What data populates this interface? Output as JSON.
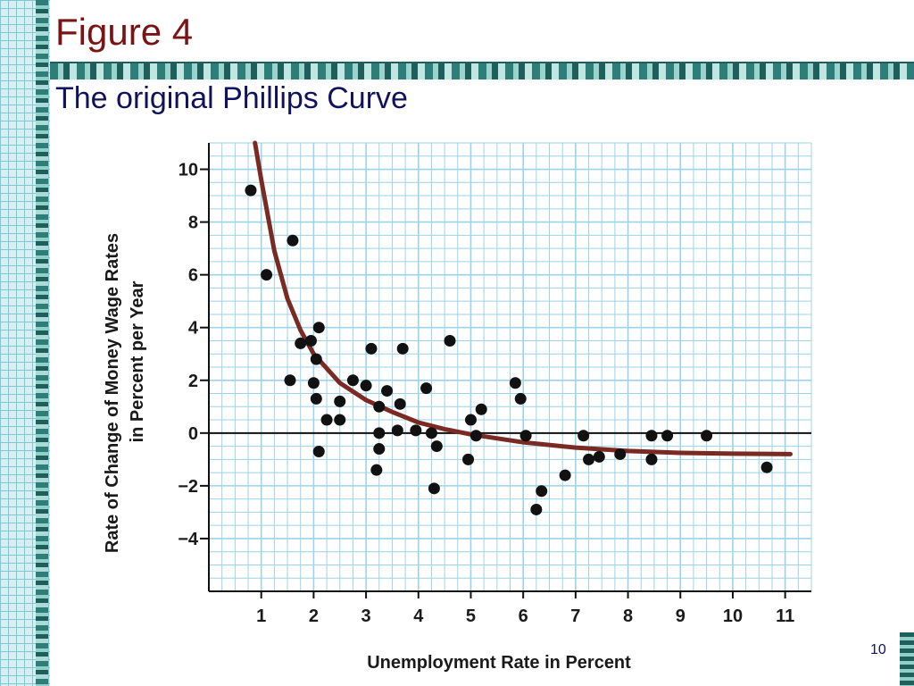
{
  "slide": {
    "title": "Figure 4",
    "subtitle": "The original Phillips Curve",
    "page_number": "10"
  },
  "colors": {
    "title": "#7a1414",
    "subtitle": "#10125e",
    "grid": "#9cd3ea",
    "curve": "#7a2a22",
    "points": "#111111"
  },
  "chart_data": {
    "type": "scatter",
    "title": "",
    "xlabel": "Unemployment Rate in Percent",
    "ylabel_line1": "Rate of Change of Money Wage Rates",
    "ylabel_line2": "in Percent per Year",
    "xlim": [
      0,
      11.5
    ],
    "ylim": [
      -6,
      11
    ],
    "grid": true,
    "x_ticks": [
      1,
      2,
      3,
      4,
      5,
      6,
      7,
      8,
      9,
      10,
      11
    ],
    "y_ticks": [
      10,
      8,
      6,
      4,
      2,
      0,
      -2,
      -4
    ],
    "y_tick_labels": [
      "10",
      "8",
      "6",
      "4",
      "2",
      "0",
      "−2",
      "−4"
    ],
    "points": [
      {
        "x": 0.8,
        "y": 9.2
      },
      {
        "x": 1.1,
        "y": 6.0
      },
      {
        "x": 1.6,
        "y": 7.3
      },
      {
        "x": 1.55,
        "y": 2.0
      },
      {
        "x": 1.75,
        "y": 3.4
      },
      {
        "x": 1.95,
        "y": 3.5
      },
      {
        "x": 2.1,
        "y": 4.0
      },
      {
        "x": 2.05,
        "y": 2.8
      },
      {
        "x": 2.0,
        "y": 1.9
      },
      {
        "x": 2.05,
        "y": 1.3
      },
      {
        "x": 2.25,
        "y": 0.5
      },
      {
        "x": 2.1,
        "y": -0.7
      },
      {
        "x": 2.5,
        "y": 1.2
      },
      {
        "x": 2.5,
        "y": 0.5
      },
      {
        "x": 2.75,
        "y": 2.0
      },
      {
        "x": 3.0,
        "y": 1.8
      },
      {
        "x": 3.1,
        "y": 3.2
      },
      {
        "x": 3.25,
        "y": 1.0
      },
      {
        "x": 3.25,
        "y": 0.0
      },
      {
        "x": 3.25,
        "y": -0.6
      },
      {
        "x": 3.2,
        "y": -1.4
      },
      {
        "x": 3.4,
        "y": 1.6
      },
      {
        "x": 3.6,
        "y": 0.1
      },
      {
        "x": 3.65,
        "y": 1.1
      },
      {
        "x": 3.7,
        "y": 3.2
      },
      {
        "x": 3.95,
        "y": 0.1
      },
      {
        "x": 4.15,
        "y": 1.7
      },
      {
        "x": 4.25,
        "y": 0.0
      },
      {
        "x": 4.35,
        "y": -0.5
      },
      {
        "x": 4.3,
        "y": -2.1
      },
      {
        "x": 4.6,
        "y": 3.5
      },
      {
        "x": 5.0,
        "y": 0.5
      },
      {
        "x": 5.1,
        "y": -0.1
      },
      {
        "x": 5.2,
        "y": 0.9
      },
      {
        "x": 4.95,
        "y": -1.0
      },
      {
        "x": 5.85,
        "y": 1.9
      },
      {
        "x": 5.95,
        "y": 1.3
      },
      {
        "x": 6.05,
        "y": -0.1
      },
      {
        "x": 6.25,
        "y": -2.9
      },
      {
        "x": 6.35,
        "y": -2.2
      },
      {
        "x": 6.8,
        "y": -1.6
      },
      {
        "x": 7.15,
        "y": -0.1
      },
      {
        "x": 7.25,
        "y": -1.0
      },
      {
        "x": 7.45,
        "y": -0.9
      },
      {
        "x": 7.85,
        "y": -0.8
      },
      {
        "x": 8.45,
        "y": -0.1
      },
      {
        "x": 8.45,
        "y": -1.0
      },
      {
        "x": 8.75,
        "y": -0.1
      },
      {
        "x": 9.5,
        "y": -0.1
      },
      {
        "x": 10.65,
        "y": -1.3
      }
    ],
    "curve": [
      {
        "x": 0.88,
        "y": 11.0
      },
      {
        "x": 1.0,
        "y": 9.6
      },
      {
        "x": 1.25,
        "y": 6.9
      },
      {
        "x": 1.5,
        "y": 5.1
      },
      {
        "x": 1.75,
        "y": 3.9
      },
      {
        "x": 2.0,
        "y": 3.0
      },
      {
        "x": 2.5,
        "y": 1.9
      },
      {
        "x": 3.0,
        "y": 1.25
      },
      {
        "x": 3.5,
        "y": 0.8
      },
      {
        "x": 4.0,
        "y": 0.4
      },
      {
        "x": 4.5,
        "y": 0.15
      },
      {
        "x": 5.0,
        "y": -0.05
      },
      {
        "x": 6.0,
        "y": -0.35
      },
      {
        "x": 7.0,
        "y": -0.55
      },
      {
        "x": 8.0,
        "y": -0.68
      },
      {
        "x": 9.0,
        "y": -0.75
      },
      {
        "x": 10.0,
        "y": -0.78
      },
      {
        "x": 11.1,
        "y": -0.8
      }
    ]
  }
}
